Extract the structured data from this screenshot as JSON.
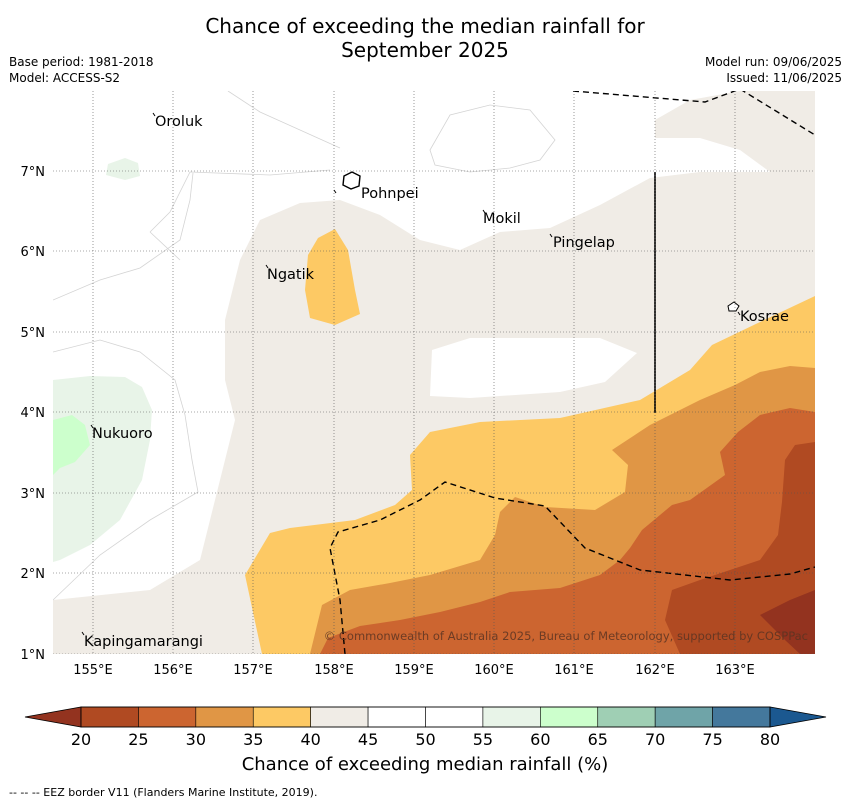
{
  "title_line1": "Chance of exceeding the median rainfall for",
  "title_line2": "September 2025",
  "base_period": "Base period: 1981-2018",
  "model": "Model: ACCESS-S2",
  "model_run": "Model run: 09/06/2025",
  "issued": "Issued: 11/06/2025",
  "copyright": "© Commonwealth of Australia 2025, Bureau of Meteorology, supported by COSPPac",
  "footer": "--  --  -- EEZ border V11 (Flanders Marine Institute, 2019).",
  "map": {
    "lon_labels": [
      "155°E",
      "156°E",
      "157°E",
      "158°E",
      "159°E",
      "160°E",
      "161°E",
      "162°E",
      "163°E"
    ],
    "lat_labels": [
      "1°N",
      "2°N",
      "3°N",
      "4°N",
      "5°N",
      "6°N",
      "7°N"
    ],
    "places": [
      {
        "name": "Oroluk"
      },
      {
        "name": "Pohnpei"
      },
      {
        "name": "Mokil"
      },
      {
        "name": "Pingelap"
      },
      {
        "name": "Ngatik"
      },
      {
        "name": "Kosrae"
      },
      {
        "name": "Nukuoro"
      },
      {
        "name": "Kapingamarangi"
      }
    ]
  },
  "colorbar": {
    "label": "Chance of exceeding median rainfall (%)",
    "ticks": [
      "20",
      "25",
      "30",
      "35",
      "40",
      "45",
      "50",
      "55",
      "60",
      "65",
      "70",
      "75",
      "80"
    ],
    "colors": [
      "#b04a22",
      "#cc6530",
      "#e09645",
      "#fdc964",
      "#f0ece6",
      "#ffffff",
      "#ffffff",
      "#e8f4e8",
      "#ccffcc",
      "#9fcfb4",
      "#6fa4a8",
      "#44789c"
    ],
    "under_color": "#93331f",
    "over_color": "#1b5890"
  }
}
